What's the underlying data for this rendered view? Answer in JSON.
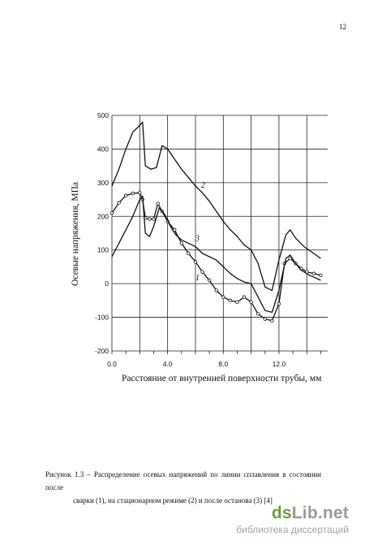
{
  "page": {
    "number": "12"
  },
  "chart_data": {
    "type": "line",
    "xlabel": "Расстояние от внутренней поверхности трубы, мм",
    "ylabel": "Осевые напряжения, МПа",
    "xlim": [
      0,
      15.5
    ],
    "ylim": [
      -200,
      500
    ],
    "x_ticks": [
      "0.0",
      "4.0",
      "8.0",
      "12.0"
    ],
    "y_ticks": [
      "500",
      "400",
      "300",
      "200",
      "100",
      "0",
      "-100",
      "-200"
    ],
    "grid": true,
    "series": [
      {
        "name": "1",
        "points": [
          [
            0,
            210
          ],
          [
            0.5,
            240
          ],
          [
            1.0,
            262
          ],
          [
            1.5,
            268
          ],
          [
            2.0,
            270
          ],
          [
            2.2,
            250
          ],
          [
            2.4,
            195
          ],
          [
            2.7,
            192
          ],
          [
            3.0,
            192
          ],
          [
            3.3,
            238
          ],
          [
            3.6,
            215
          ],
          [
            4.0,
            185
          ],
          [
            4.5,
            160
          ],
          [
            5.0,
            120
          ],
          [
            5.5,
            90
          ],
          [
            6.0,
            65
          ],
          [
            6.5,
            35
          ],
          [
            7.0,
            10
          ],
          [
            7.5,
            -20
          ],
          [
            8.0,
            -40
          ],
          [
            8.5,
            -50
          ],
          [
            9.0,
            -55
          ],
          [
            9.5,
            -40
          ],
          [
            10.0,
            -55
          ],
          [
            10.5,
            -90
          ],
          [
            11.0,
            -105
          ],
          [
            11.5,
            -110
          ],
          [
            12.0,
            -60
          ],
          [
            12.4,
            60
          ],
          [
            12.8,
            75
          ],
          [
            13.2,
            60
          ],
          [
            13.6,
            45
          ],
          [
            14.0,
            35
          ],
          [
            14.5,
            30
          ],
          [
            15.0,
            25
          ]
        ],
        "markers": true
      },
      {
        "name": "2",
        "points": [
          [
            0,
            290
          ],
          [
            0.5,
            340
          ],
          [
            1.0,
            400
          ],
          [
            1.5,
            450
          ],
          [
            2.0,
            470
          ],
          [
            2.2,
            480
          ],
          [
            2.4,
            350
          ],
          [
            2.8,
            340
          ],
          [
            3.2,
            345
          ],
          [
            3.6,
            410
          ],
          [
            4.0,
            400
          ],
          [
            4.5,
            370
          ],
          [
            5.0,
            340
          ],
          [
            5.5,
            315
          ],
          [
            6.0,
            290
          ],
          [
            6.5,
            270
          ],
          [
            7.0,
            245
          ],
          [
            7.5,
            215
          ],
          [
            8.0,
            185
          ],
          [
            8.5,
            160
          ],
          [
            9.0,
            140
          ],
          [
            9.5,
            115
          ],
          [
            10.0,
            100
          ],
          [
            10.5,
            60
          ],
          [
            11.0,
            -10
          ],
          [
            11.5,
            -20
          ],
          [
            12.0,
            70
          ],
          [
            12.5,
            145
          ],
          [
            12.8,
            160
          ],
          [
            13.2,
            135
          ],
          [
            13.8,
            110
          ],
          [
            14.5,
            90
          ],
          [
            15.0,
            75
          ]
        ],
        "markers": false
      },
      {
        "name": "3",
        "points": [
          [
            0,
            80
          ],
          [
            0.5,
            120
          ],
          [
            1.0,
            160
          ],
          [
            1.5,
            200
          ],
          [
            2.0,
            250
          ],
          [
            2.2,
            260
          ],
          [
            2.4,
            150
          ],
          [
            2.7,
            140
          ],
          [
            3.0,
            170
          ],
          [
            3.4,
            225
          ],
          [
            3.8,
            205
          ],
          [
            4.2,
            170
          ],
          [
            4.6,
            145
          ],
          [
            5.0,
            130
          ],
          [
            5.5,
            120
          ],
          [
            6.0,
            110
          ],
          [
            6.5,
            90
          ],
          [
            7.0,
            80
          ],
          [
            7.5,
            70
          ],
          [
            8.0,
            50
          ],
          [
            8.5,
            30
          ],
          [
            9.0,
            15
          ],
          [
            9.5,
            5
          ],
          [
            10.0,
            0
          ],
          [
            10.5,
            -40
          ],
          [
            11.0,
            -80
          ],
          [
            11.5,
            -85
          ],
          [
            12.0,
            -20
          ],
          [
            12.5,
            75
          ],
          [
            12.8,
            85
          ],
          [
            13.2,
            60
          ],
          [
            13.6,
            40
          ],
          [
            14.2,
            25
          ],
          [
            15.0,
            10
          ]
        ],
        "markers": false
      }
    ]
  },
  "caption": {
    "line1": "Рисунок 1.3 – Распределение осевых напряжений по линии сплавления в состоянии после",
    "line2": "сварки (1), на стационарном режиме (2) и после останова (3) [4]"
  },
  "watermark": {
    "logo_ds": "ds",
    "logo_rest": "Lib.net",
    "subtitle": "библиотека диссертаций"
  }
}
